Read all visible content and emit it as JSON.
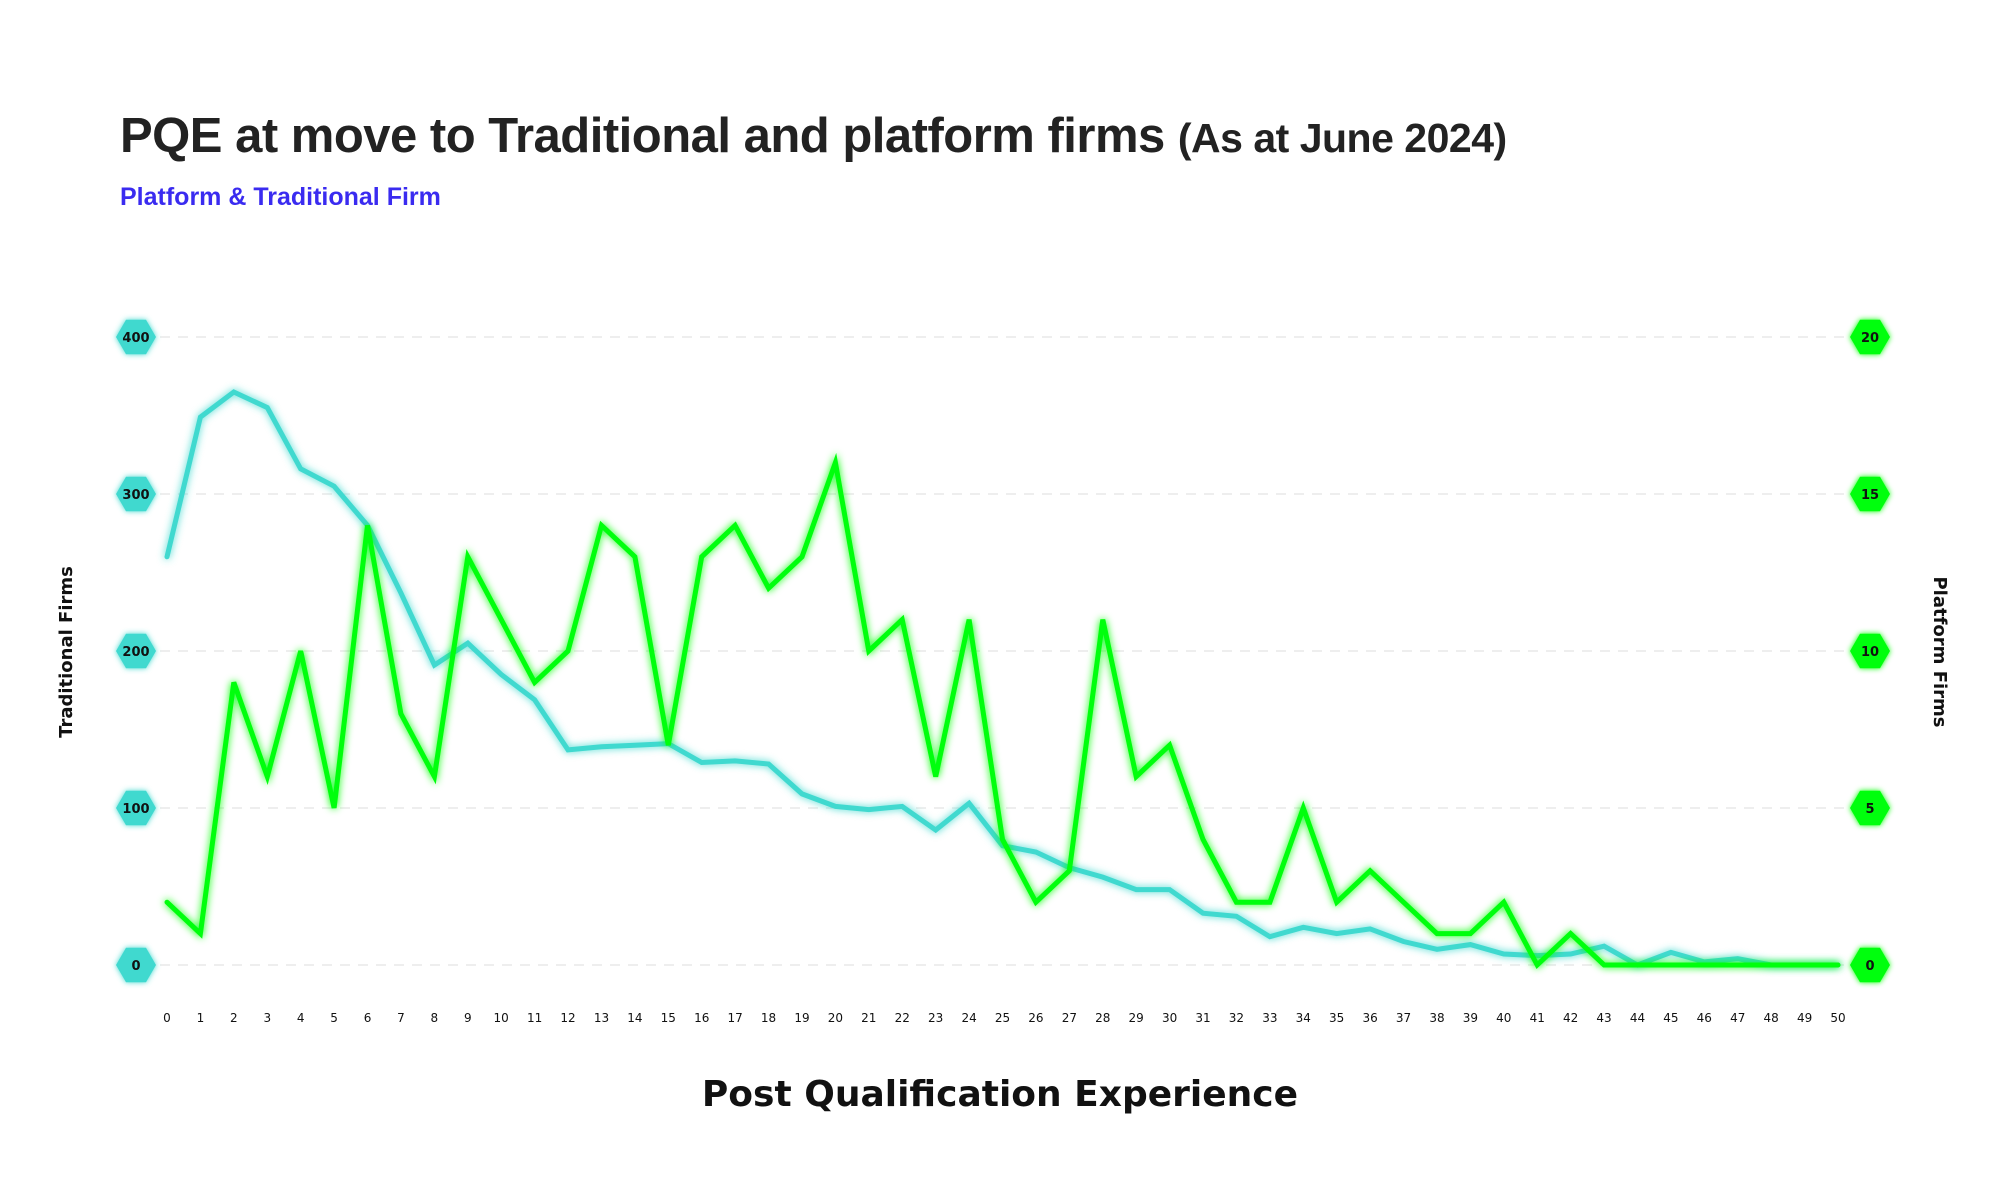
{
  "chart_data": {
    "type": "line",
    "title": "PQE at move to Traditional and platform firms",
    "title_note": "(As at June 2024)",
    "subtitle": "Platform & Traditional Firm",
    "xlabel": "Post Qualification Experience",
    "ylabel_left": "Traditional Firms",
    "ylabel_right": "Platform Firms",
    "x": [
      0,
      1,
      2,
      3,
      4,
      5,
      6,
      7,
      8,
      9,
      10,
      11,
      12,
      13,
      14,
      15,
      16,
      17,
      18,
      19,
      20,
      21,
      22,
      23,
      24,
      25,
      26,
      27,
      28,
      29,
      30,
      31,
      32,
      33,
      34,
      35,
      36,
      37,
      38,
      39,
      40,
      41,
      42,
      43,
      44,
      45,
      46,
      47,
      48,
      49,
      50
    ],
    "ylim_left": [
      0,
      400
    ],
    "ylim_right": [
      0,
      20
    ],
    "yticks_left": [
      0,
      100,
      200,
      300,
      400
    ],
    "yticks_right": [
      0,
      5,
      10,
      15,
      20
    ],
    "grid": "horizontal dashed",
    "series": [
      {
        "axis": "left",
        "color": "#3fd9cf",
        "values": [
          260,
          349,
          365,
          355,
          316,
          305,
          280,
          237,
          191,
          205,
          185,
          169,
          137,
          139,
          140,
          141,
          129,
          130,
          128,
          109,
          101,
          99,
          101,
          86,
          103,
          76,
          72,
          62,
          56,
          48,
          48,
          33,
          31,
          18,
          24,
          20,
          23,
          15,
          10,
          13,
          7,
          6,
          7,
          12,
          0,
          8,
          2,
          4,
          0,
          0,
          0
        ]
      },
      {
        "axis": "right",
        "color": "#00ff0a",
        "values": [
          2,
          1,
          9,
          6,
          10,
          5,
          14,
          8,
          6,
          13,
          11,
          9,
          10,
          14,
          13,
          7,
          13,
          14,
          12,
          13,
          16,
          10,
          11,
          6,
          11,
          4,
          2,
          3,
          11,
          6,
          7,
          4,
          2,
          2,
          5,
          2,
          3,
          2,
          1,
          1,
          2,
          0,
          1,
          0,
          0,
          0,
          0,
          0,
          0,
          0,
          0
        ]
      }
    ],
    "colors": {
      "teal": "#3fd9cf",
      "green": "#00ff0a",
      "subtitle": "#3a2bf0",
      "grid": "#dddddd"
    }
  }
}
